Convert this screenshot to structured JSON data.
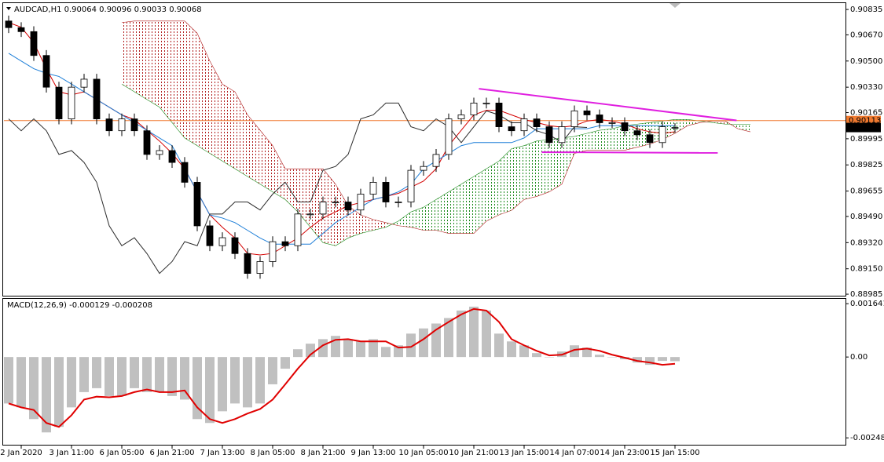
{
  "chart_data": [
    {
      "type": "candlestick",
      "title": "AUDCAD,H1 0.90064 0.90096 0.90033 0.90068",
      "categories": [
        null,
        "2 Jan 2020",
        null,
        null,
        null,
        "3 Jan 11:00",
        null,
        null,
        null,
        "6 Jan 05:00",
        null,
        null,
        null,
        "6 Jan 21:00",
        null,
        null,
        null,
        "7 Jan 13:00",
        null,
        null,
        null,
        "8 Jan 05:00",
        null,
        null,
        null,
        "8 Jan 21:00",
        null,
        null,
        null,
        "9 Jan 13:00",
        null,
        null,
        null,
        "10 Jan 05:00",
        null,
        null,
        null,
        "10 Jan 21:00",
        null,
        null,
        null,
        "13 Jan 15:00",
        null,
        null,
        null,
        "14 Jan 07:00",
        null,
        null,
        null,
        "14 Jan 23:00",
        null,
        null,
        null,
        "15 Jan 15:00",
        null,
        null,
        null,
        null,
        null,
        null
      ],
      "open": [
        0.9076,
        0.90717,
        0.90691,
        0.90536,
        0.9033,
        0.90124,
        0.9033,
        0.90382,
        0.90124,
        0.90047,
        0.90124,
        0.90047,
        0.89893,
        0.89918,
        0.89841,
        0.89712,
        0.89429,
        0.893,
        0.89352,
        0.89249,
        0.8912,
        0.89197,
        0.89326,
        0.893,
        0.89506,
        0.89506,
        0.89584,
        0.89584,
        0.89532,
        0.89635,
        0.89712,
        0.89584,
        0.89584,
        0.8979,
        0.89815,
        0.89893,
        0.90124,
        0.9015,
        0.90227,
        0.90227,
        0.90073,
        0.90047,
        0.90124,
        0.90073,
        0.8997,
        0.90073,
        0.90176,
        0.9015,
        0.90099,
        0.90099,
        0.90047,
        0.90021,
        0.8997,
        0.90064,
        null,
        null,
        null,
        null,
        null,
        null
      ],
      "high": [
        0.90795,
        0.90752,
        0.90726,
        0.90571,
        0.90365,
        0.90365,
        0.90417,
        0.90417,
        0.90159,
        0.90159,
        0.90159,
        0.90082,
        0.89953,
        0.89953,
        0.89876,
        0.89747,
        0.89464,
        0.89387,
        0.89387,
        0.89284,
        0.89232,
        0.89361,
        0.89361,
        0.89541,
        0.89541,
        0.89619,
        0.89619,
        0.89619,
        0.8967,
        0.89747,
        0.89747,
        0.89619,
        0.89825,
        0.8985,
        0.89928,
        0.90159,
        0.90185,
        0.90262,
        0.90262,
        0.90262,
        0.90108,
        0.90159,
        0.90159,
        0.90108,
        0.90108,
        0.90211,
        0.90211,
        0.90185,
        0.90134,
        0.90134,
        0.90082,
        0.90056,
        0.90108,
        0.90096,
        null,
        null,
        null,
        null,
        null,
        null
      ],
      "low": [
        0.90682,
        0.90656,
        0.90501,
        0.90295,
        0.90089,
        0.90089,
        0.90295,
        0.90089,
        0.90012,
        0.90012,
        0.90012,
        0.89858,
        0.89858,
        0.89806,
        0.89677,
        0.89394,
        0.89265,
        0.89265,
        0.89214,
        0.89085,
        0.89085,
        0.89162,
        0.89265,
        0.89265,
        0.89471,
        0.89471,
        0.89549,
        0.89497,
        0.89497,
        0.896,
        0.89549,
        0.89549,
        0.89549,
        0.89755,
        0.8978,
        0.89858,
        0.90089,
        0.90115,
        0.90192,
        0.90038,
        0.90012,
        0.90012,
        0.90038,
        0.89935,
        0.89935,
        0.90038,
        0.90115,
        0.90064,
        0.90064,
        0.90012,
        0.89986,
        0.89935,
        0.89935,
        0.90033,
        null,
        null,
        null,
        null,
        null,
        null
      ],
      "close": [
        0.90717,
        0.90691,
        0.90536,
        0.9033,
        0.90124,
        0.9033,
        0.90382,
        0.90124,
        0.90047,
        0.90124,
        0.90047,
        0.89893,
        0.89918,
        0.89841,
        0.89712,
        0.89429,
        0.893,
        0.89352,
        0.89249,
        0.8912,
        0.89197,
        0.89326,
        0.893,
        0.89506,
        0.89506,
        0.89584,
        0.89584,
        0.89532,
        0.89635,
        0.89712,
        0.89584,
        0.89584,
        0.8979,
        0.89815,
        0.89893,
        0.90124,
        0.9015,
        0.90227,
        0.90227,
        0.90073,
        0.90047,
        0.90124,
        0.90073,
        0.8997,
        0.90073,
        0.90176,
        0.9015,
        0.90099,
        0.90099,
        0.90047,
        0.90021,
        0.8997,
        0.90073,
        0.90068,
        null,
        null,
        null,
        null,
        null,
        null
      ],
      "up_color": "#ffffff",
      "down_color": "#000000",
      "lines": [
        {
          "color": "#d40000",
          "values": [
            0.9075,
            0.9072,
            0.9062,
            0.9045,
            0.903,
            0.9028,
            0.903,
            0.9025,
            0.902,
            0.9015,
            0.9012,
            0.9005,
            0.8998,
            0.899,
            0.898,
            0.8965,
            0.895,
            0.8942,
            0.8935,
            0.8925,
            0.8924,
            0.8925,
            0.893,
            0.8935,
            0.8942,
            0.8948,
            0.8952,
            0.8956,
            0.8958,
            0.896,
            0.8962,
            0.8964,
            0.8968,
            0.8972,
            0.898,
            0.8995,
            0.9005,
            0.9015,
            0.9018,
            0.9018,
            0.9015,
            0.9012,
            0.901,
            0.9008,
            0.9007,
            0.9008,
            0.9011,
            0.9012,
            0.9011,
            0.9009,
            0.9006,
            0.9004,
            0.9003,
            0.9004,
            null,
            null,
            null,
            null,
            null,
            null
          ]
        },
        {
          "color": "#1e7fd8",
          "values": [
            0.9055,
            0.905,
            0.9045,
            0.9042,
            0.904,
            0.9035,
            0.903,
            0.9025,
            0.902,
            0.9015,
            0.901,
            0.9005,
            0.9,
            0.8995,
            0.898,
            0.8965,
            0.895,
            0.8948,
            0.8945,
            0.894,
            0.8935,
            0.8931,
            0.8931,
            0.8931,
            0.8931,
            0.8938,
            0.8945,
            0.895,
            0.8955,
            0.896,
            0.8962,
            0.8965,
            0.897,
            0.898,
            0.8985,
            0.899,
            0.8995,
            0.8997,
            0.8997,
            0.8997,
            0.8997,
            0.9,
            0.9006,
            0.9006,
            0.9006,
            0.9006,
            0.9006,
            0.9008,
            0.9008,
            0.9008,
            0.9008,
            0.9008,
            0.9008,
            0.9008,
            null,
            null,
            null,
            null,
            null,
            null
          ]
        },
        {
          "color": "#2b2b2b",
          "values": [
            0.90124,
            0.90047,
            0.90124,
            0.90047,
            0.89893,
            0.89918,
            0.89841,
            0.89712,
            0.89429,
            0.893,
            0.89352,
            0.89249,
            0.8912,
            0.89197,
            0.89326,
            0.893,
            0.89506,
            0.89506,
            0.89584,
            0.89584,
            0.89532,
            0.89635,
            0.89712,
            0.89584,
            0.89584,
            0.8979,
            0.89815,
            0.89893,
            0.90124,
            0.9015,
            0.90227,
            0.90227,
            0.90073,
            0.90047,
            0.90124,
            0.90073,
            0.8997,
            0.90073,
            0.90176,
            0.9015,
            0.90099,
            0.90099,
            0.90047,
            0.90021,
            0.8997,
            0.90073,
            0.90068,
            null,
            null,
            null,
            null,
            null,
            null,
            null,
            null,
            null,
            null,
            null,
            null,
            null
          ]
        }
      ],
      "cloud": {
        "a": {
          "color": "#1a8a1a",
          "values": [
            null,
            null,
            null,
            null,
            null,
            null,
            null,
            null,
            null,
            0.9035,
            0.903,
            0.9025,
            0.902,
            0.901,
            0.9,
            0.8995,
            0.899,
            0.8985,
            0.898,
            0.8975,
            0.897,
            0.8965,
            0.896,
            0.8952,
            0.8942,
            0.8932,
            0.893,
            0.8935,
            0.8938,
            0.894,
            0.8942,
            0.8946,
            0.8952,
            0.8955,
            0.896,
            0.8965,
            0.897,
            0.8975,
            0.898,
            0.8985,
            0.8993,
            0.8995,
            0.8998,
            0.8999,
            0.9,
            0.9001,
            0.9003,
            0.9005,
            0.9006,
            0.9008,
            0.9009,
            0.901,
            0.9011,
            0.9012,
            0.9012,
            0.9011,
            0.901,
            0.9009,
            0.9009,
            0.9009
          ]
        },
        "b": {
          "color": "#b01c1c",
          "values": [
            null,
            null,
            null,
            null,
            null,
            null,
            null,
            null,
            null,
            0.9075,
            0.9076,
            0.9076,
            0.9076,
            0.9076,
            0.9076,
            0.9068,
            0.905,
            0.9035,
            0.903,
            0.9015,
            0.9005,
            0.8995,
            0.898,
            0.898,
            0.898,
            0.898,
            0.897,
            0.8956,
            0.895,
            0.8947,
            0.8945,
            0.8943,
            0.8942,
            0.894,
            0.894,
            0.8938,
            0.8938,
            0.8938,
            0.8946,
            0.895,
            0.8953,
            0.896,
            0.8962,
            0.8965,
            0.897,
            0.899,
            0.8992,
            0.8992,
            0.8992,
            0.8992,
            0.8994,
            0.8996,
            0.8999,
            0.9003,
            0.9008,
            0.901,
            0.9011,
            0.9011,
            0.9006,
            0.9004
          ]
        }
      },
      "trendlines": [
        {
          "color": "#e020e0",
          "x": [
            37.4,
            57.9
          ],
          "values": [
            0.9032,
            0.90114
          ]
        },
        {
          "color": "#e020e0",
          "x": [
            42.4,
            56.4
          ],
          "values": [
            0.89908,
            0.89903
          ]
        }
      ],
      "price_lines": [
        {
          "value": 0.90113,
          "color": "#f07a30",
          "line": true
        },
        {
          "value": 0.90068,
          "color": "#000000",
          "line": false
        }
      ],
      "ylim": [
        0.8897,
        0.90871
      ],
      "yticks": [
        0.90835,
        {
          "value": 0.9067,
          "label": "0.90670"
        },
        {
          "value": 0.905,
          "label": "0.90500"
        },
        {
          "value": 0.9033,
          "label": "0.90330"
        },
        0.90165,
        0.89995,
        0.89825,
        0.89655,
        {
          "value": 0.8949,
          "label": "0.89490"
        },
        {
          "value": 0.8932,
          "label": "0.89320"
        },
        {
          "value": 0.8915,
          "label": "0.89150"
        },
        0.88985
      ]
    },
    {
      "type": "macd",
      "title": "MACD(12,26,9) -0.000129 -0.000208",
      "color": "#c0c0c0",
      "values": [
        -0.00143,
        -0.00155,
        -0.00191,
        -0.00232,
        -0.00215,
        -0.00155,
        -0.00108,
        -0.00096,
        -0.0012,
        -0.0012,
        -0.00096,
        -0.00108,
        -0.00108,
        -0.0012,
        -0.00131,
        -0.00191,
        -0.00203,
        -0.00167,
        -0.00143,
        -0.00155,
        -0.00143,
        -0.00084,
        -0.00036,
        0.00024,
        0.00041,
        0.00055,
        0.00065,
        0.00055,
        0.00048,
        0.00055,
        0.00031,
        0.00036,
        0.00072,
        0.00088,
        0.00103,
        0.0012,
        0.00143,
        0.00155,
        0.00143,
        0.00072,
        0.00048,
        0.00036,
        0.00012,
        0,
        0.00017,
        0.00036,
        0.00029,
        7e-05,
        0,
        -7e-05,
        -0.00017,
        -0.00024,
        -0.00012,
        -0.000129,
        null,
        null,
        null,
        null,
        null,
        null
      ],
      "signal": {
        "color": "#e00000",
        "values": [
          -0.00143,
          -0.00155,
          -0.00163,
          -0.00203,
          -0.00215,
          -0.00179,
          -0.00131,
          -0.00122,
          -0.00124,
          -0.0012,
          -0.00108,
          -0.001,
          -0.00108,
          -0.00108,
          -0.00103,
          -0.00155,
          -0.00191,
          -0.00203,
          -0.00191,
          -0.00174,
          -0.0016,
          -0.00131,
          -0.00084,
          -0.00036,
          7e-05,
          0.00036,
          0.00053,
          0.00055,
          0.00048,
          0.00048,
          0.00048,
          0.00029,
          0.00031,
          0.00055,
          0.00084,
          0.00108,
          0.00131,
          0.00148,
          0.00143,
          0.00108,
          0.00055,
          0.00036,
          0.00019,
          5e-05,
          7e-05,
          0.00022,
          0.00026,
          0.00019,
          7e-05,
          -2e-05,
          -0.00012,
          -0.00017,
          -0.00024,
          -0.000208,
          null,
          null,
          null,
          null,
          null,
          null
        ]
      },
      "ylim": [
        -0.0027,
        0.00179
      ],
      "yticks": [
        0.001641,
        {
          "value": 0,
          "label": "0.00"
        },
        -0.002488
      ]
    }
  ]
}
